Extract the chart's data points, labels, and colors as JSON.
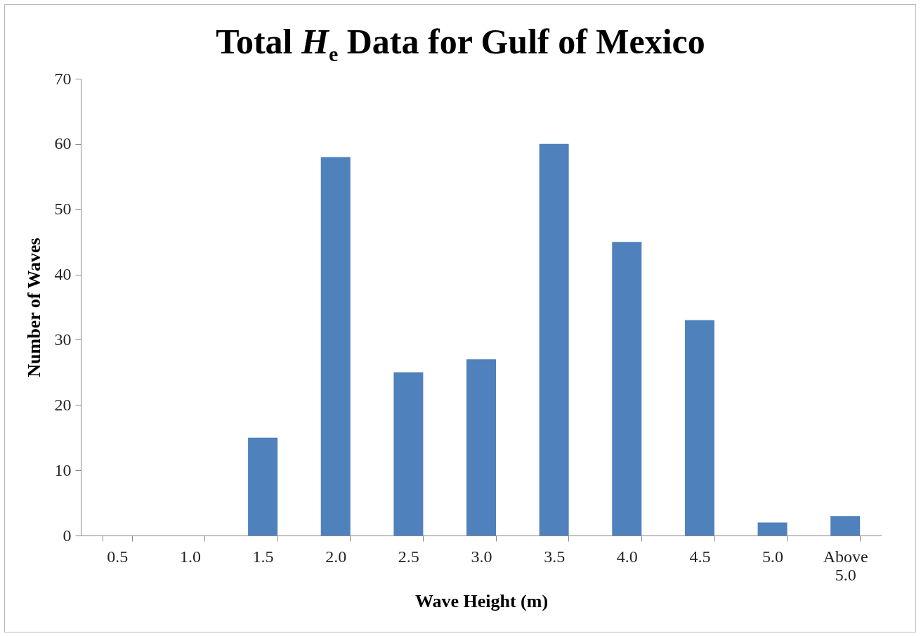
{
  "chart_data": {
    "type": "bar",
    "title": "Total H$_{e}$ Data for Gulf of Mexico",
    "xlabel": "Wave Height (m)",
    "ylabel": "Number of Waves",
    "categories": [
      "0.5",
      "1.0",
      "1.5",
      "2.0",
      "2.5",
      "3.0",
      "3.5",
      "4.0",
      "4.5",
      "5.0",
      "Above 5.0"
    ],
    "values": [
      0,
      0,
      15,
      58,
      25,
      27,
      60,
      45,
      33,
      2,
      3
    ],
    "color": "#4f81bd",
    "ylim": [
      0,
      70
    ],
    "yticks": [
      0,
      10,
      20,
      30,
      40,
      50,
      60,
      70
    ],
    "grid": false
  }
}
